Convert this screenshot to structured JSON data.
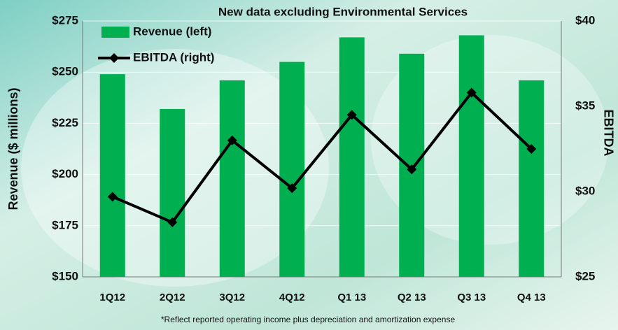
{
  "chart_data": {
    "type": "bar-line",
    "title": "New data excluding Environmental Services",
    "y_label": "Revenue ($ millions)",
    "y2_label": "EBITDA",
    "footnote": "*Reflect reported operating income plus depreciation and amortization expense",
    "categories": [
      "1Q12",
      "2Q12",
      "3Q12",
      "4Q12",
      "Q1 13",
      "Q2 13",
      "Q3 13",
      "Q4 13"
    ],
    "series": [
      {
        "name": "Revenue (left)",
        "color": "#00b050",
        "values": [
          249,
          232,
          246,
          255,
          267,
          259,
          268,
          246
        ]
      },
      {
        "name": "EBITDA (right)",
        "color": "#000000",
        "axis": "y2",
        "values": [
          29.7,
          28.2,
          33.0,
          30.2,
          34.5,
          31.3,
          35.8,
          32.5
        ]
      }
    ],
    "ylim": [
      150,
      275
    ],
    "yticks": [
      {
        "value": 150,
        "label": "$150"
      },
      {
        "value": 175,
        "label": "$175"
      },
      {
        "value": 200,
        "label": "$200"
      },
      {
        "value": 225,
        "label": "$225"
      },
      {
        "value": 250,
        "label": "$250"
      },
      {
        "value": 275,
        "label": "$275"
      }
    ],
    "y2lim": [
      25,
      40
    ],
    "y2ticks": [
      {
        "value": 25,
        "label": "$25"
      },
      {
        "value": 30,
        "label": "$30"
      },
      {
        "value": 35,
        "label": "$35"
      },
      {
        "value": 40,
        "label": "$40"
      }
    ],
    "grid": true
  }
}
